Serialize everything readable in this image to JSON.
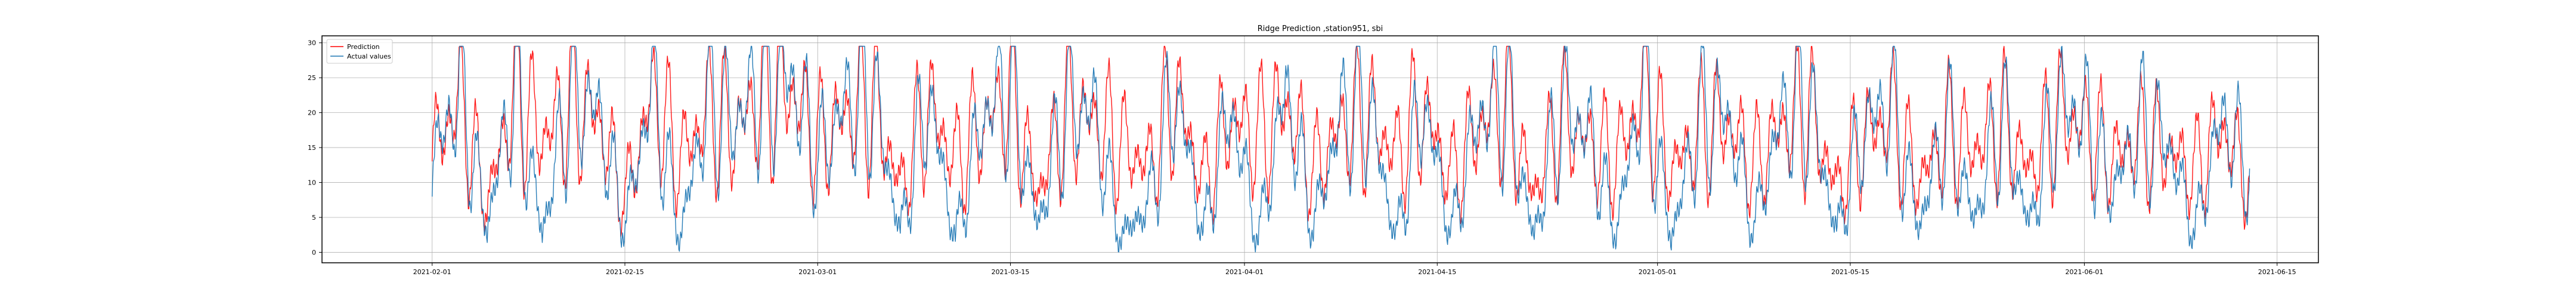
{
  "chart_data": {
    "type": "line",
    "title": "Ridge Prediction ,station951, sbi",
    "xlabel": "",
    "ylabel": "",
    "x_range": [
      "2021-01-24",
      "2021-06-18"
    ],
    "x_tick_labels": [
      "2021-02-01",
      "2021-02-15",
      "2021-03-01",
      "2021-03-15",
      "2021-04-01",
      "2021-04-15",
      "2021-05-01",
      "2021-05-15",
      "2021-06-01",
      "2021-06-15"
    ],
    "ylim": [
      -1.5,
      31
    ],
    "y_ticks": [
      0,
      5,
      10,
      15,
      20,
      25,
      30
    ],
    "grid": true,
    "legend_position": "top-left",
    "series": [
      {
        "name": "Prediction",
        "color": "#ff0000",
        "x": [
          "2021-02-01",
          "2021-02-03",
          "2021-02-05",
          "2021-02-07",
          "2021-02-09",
          "2021-02-11",
          "2021-02-13",
          "2021-02-15",
          "2021-02-17",
          "2021-02-19",
          "2021-02-21",
          "2021-02-23",
          "2021-02-25",
          "2021-02-27",
          "2021-03-01",
          "2021-03-03",
          "2021-03-05",
          "2021-03-07",
          "2021-03-09",
          "2021-03-11",
          "2021-03-13",
          "2021-03-15",
          "2021-03-17",
          "2021-03-19",
          "2021-03-21",
          "2021-03-23",
          "2021-03-25",
          "2021-03-27",
          "2021-03-29",
          "2021-03-31",
          "2021-04-02",
          "2021-04-04",
          "2021-04-06",
          "2021-04-08",
          "2021-04-10",
          "2021-04-12",
          "2021-04-14",
          "2021-04-16",
          "2021-04-18",
          "2021-04-20",
          "2021-04-22",
          "2021-04-24",
          "2021-04-26",
          "2021-04-28",
          "2021-04-30",
          "2021-05-02",
          "2021-05-04",
          "2021-05-06",
          "2021-05-08",
          "2021-05-10",
          "2021-05-12",
          "2021-05-14",
          "2021-05-16",
          "2021-05-18",
          "2021-05-20",
          "2021-05-22",
          "2021-05-24",
          "2021-05-26",
          "2021-05-28",
          "2021-05-30",
          "2021-06-01",
          "2021-06-03",
          "2021-06-05",
          "2021-06-07",
          "2021-06-09",
          "2021-06-11",
          "2021-06-13"
        ],
        "y": [
          15,
          25,
          6,
          27,
          18,
          24,
          22,
          7,
          26,
          14,
          23,
          19,
          26,
          27,
          17,
          22,
          25,
          9,
          24,
          14,
          20,
          26,
          8,
          23,
          21,
          17,
          13,
          26,
          10,
          22,
          18,
          24,
          12,
          20,
          22,
          15,
          23,
          11,
          20,
          24,
          8,
          22,
          17,
          14,
          27,
          12,
          19,
          21,
          13,
          20,
          23,
          9,
          18,
          22,
          10,
          19,
          16,
          21,
          12,
          22,
          20,
          14,
          18,
          16,
          12,
          20,
          10
        ]
      },
      {
        "name": "Actual values",
        "color": "#1f77b4",
        "x": [
          "2021-02-01",
          "2021-02-03",
          "2021-02-05",
          "2021-02-07",
          "2021-02-09",
          "2021-02-11",
          "2021-02-13",
          "2021-02-15",
          "2021-02-17",
          "2021-02-19",
          "2021-02-21",
          "2021-02-23",
          "2021-02-25",
          "2021-02-27",
          "2021-03-01",
          "2021-03-03",
          "2021-03-05",
          "2021-03-07",
          "2021-03-09",
          "2021-03-11",
          "2021-03-13",
          "2021-03-15",
          "2021-03-17",
          "2021-03-19",
          "2021-03-21",
          "2021-03-23",
          "2021-03-25",
          "2021-03-27",
          "2021-03-29",
          "2021-03-31",
          "2021-04-02",
          "2021-04-04",
          "2021-04-06",
          "2021-04-08",
          "2021-04-10",
          "2021-04-12",
          "2021-04-14",
          "2021-04-16",
          "2021-04-18",
          "2021-04-20",
          "2021-04-22",
          "2021-04-24",
          "2021-04-26",
          "2021-04-28",
          "2021-04-30",
          "2021-05-02",
          "2021-05-04",
          "2021-05-06",
          "2021-05-08",
          "2021-05-10",
          "2021-05-12",
          "2021-05-14",
          "2021-05-16",
          "2021-05-18",
          "2021-05-20",
          "2021-05-22",
          "2021-05-24",
          "2021-05-26",
          "2021-05-28",
          "2021-05-30",
          "2021-06-01",
          "2021-06-03",
          "2021-06-05",
          "2021-06-07",
          "2021-06-09",
          "2021-06-11",
          "2021-06-13"
        ],
        "y": [
          13,
          27,
          2,
          28,
          1,
          26,
          23,
          2,
          28,
          0,
          25,
          21,
          28,
          29,
          14,
          24,
          27,
          1,
          26,
          0,
          22,
          28,
          2,
          24,
          23,
          0,
          6,
          27,
          1,
          24,
          0,
          27,
          2,
          22,
          24,
          0,
          25,
          1,
          22,
          26,
          0,
          24,
          19,
          1,
          29,
          0,
          21,
          23,
          2,
          22,
          25,
          1,
          20,
          24,
          2,
          21,
          3,
          23,
          2,
          24,
          22,
          8,
          20,
          18,
          1,
          22,
          12
        ]
      }
    ]
  }
}
